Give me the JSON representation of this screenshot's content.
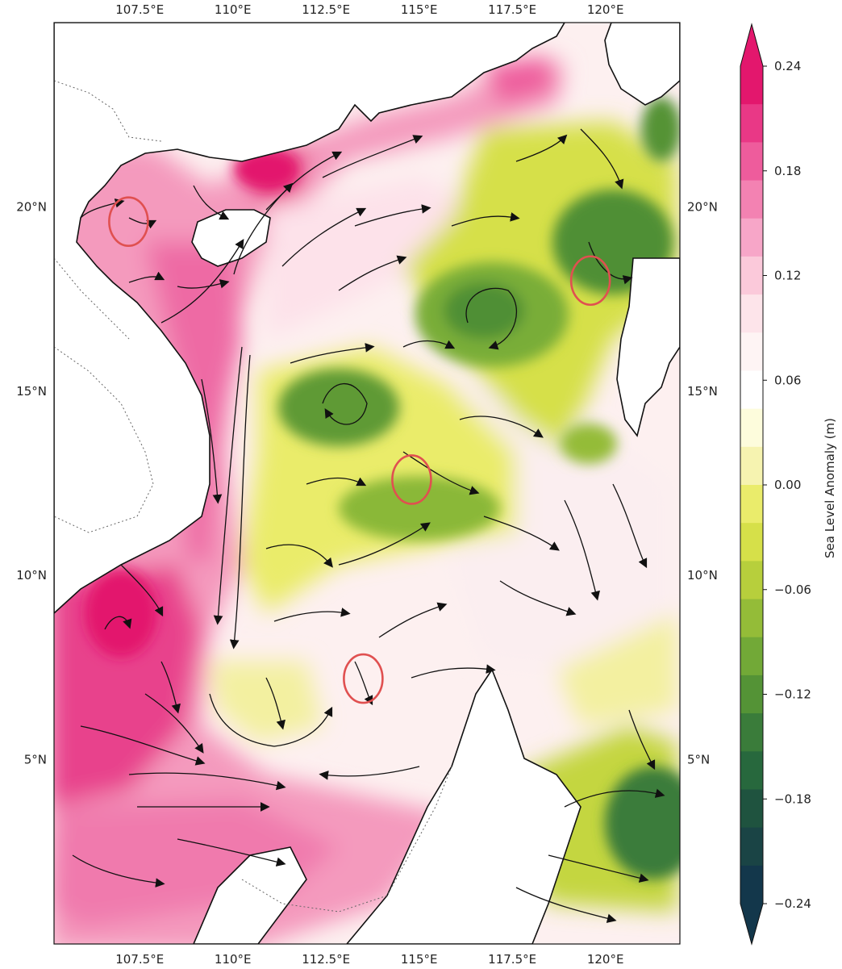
{
  "map": {
    "x_tick_labels": [
      "107.5°E",
      "110°E",
      "112.5°E",
      "115°E",
      "117.5°E",
      "120°E"
    ],
    "y_tick_labels": [
      "20°N",
      "15°N",
      "10°N",
      "5°N"
    ],
    "extent": {
      "lon_min": 105.2,
      "lon_max": 122.0,
      "lat_min": 0.0,
      "lat_max": 25.0
    },
    "features": [
      "sea-level-anomaly-fill",
      "surface-current-streamlines",
      "coastline",
      "country-borders",
      "highlight-circles"
    ],
    "highlight_circle_color": "#e05050",
    "highlights": [
      {
        "name": "gulf-of-tonkin",
        "lon": 107.2,
        "lat": 19.6
      },
      {
        "name": "luzon-west",
        "lon": 119.6,
        "lat": 18.0
      },
      {
        "name": "central-basin",
        "lon": 114.8,
        "lat": 12.6
      },
      {
        "name": "south-borneo-shelf",
        "lon": 113.5,
        "lat": 7.2
      }
    ]
  },
  "colorbar": {
    "title": "Sea Level Anomaly (m)",
    "tick_labels": [
      "0.24",
      "0.18",
      "0.12",
      "0.06",
      "0.00",
      "−0.06",
      "−0.12",
      "−0.18",
      "−0.24"
    ],
    "range": [
      -0.24,
      0.24
    ],
    "extend": "both",
    "colors_top_to_bottom": [
      "#e3176d",
      "#e93886",
      "#ee5c9c",
      "#f382b2",
      "#f7a6c8",
      "#fbc9da",
      "#fde4ea",
      "#fef4f4",
      "#ffffff",
      "#fdfcdc",
      "#f6f3b0",
      "#eaec6b",
      "#d6e049",
      "#b7cf3c",
      "#94bc38",
      "#72a937",
      "#549336",
      "#3a7c3a",
      "#27683d",
      "#1f533f",
      "#1a4445",
      "#13374b"
    ]
  }
}
